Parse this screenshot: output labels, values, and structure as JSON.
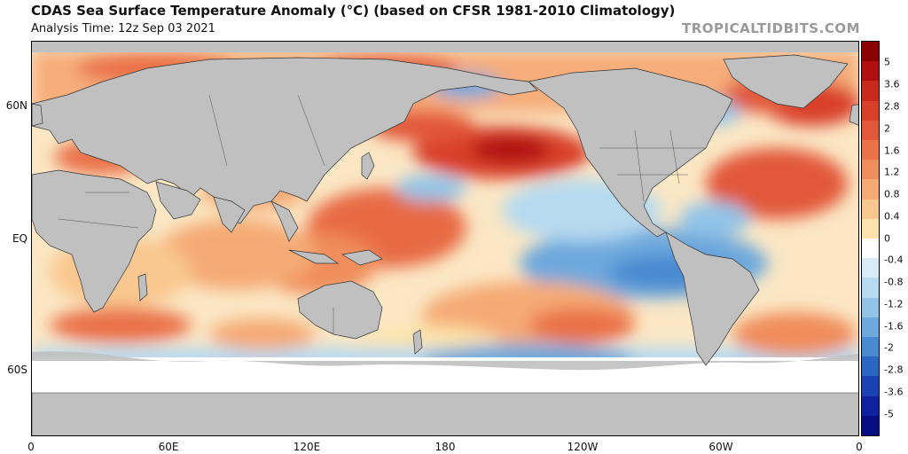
{
  "header": {
    "title": "CDAS Sea Surface Temperature Anomaly (°C) (based on CFSR 1981-2010 Climatology)",
    "analysis_time": "Analysis Time: 12z Sep 03 2021",
    "brand": "TROPICALTIDBITS.COM"
  },
  "map": {
    "lat_labels": [
      "60N",
      "EQ",
      "60S"
    ],
    "lon_labels": [
      "0",
      "60E",
      "120E",
      "180",
      "120W",
      "60W",
      "0"
    ],
    "land_color": "#c0c0c0",
    "ice_color": "#ffffff",
    "anomaly_features": [
      {
        "name": "northeast-pacific-warm-blob",
        "anomaly": 3
      },
      {
        "name": "western-pacific-warm-pool",
        "anomaly": 1.6
      },
      {
        "name": "north-atlantic-warm",
        "anomaly": 2
      },
      {
        "name": "equatorial-pacific-cool-tongue",
        "anomaly": -1.2
      },
      {
        "name": "southern-ocean-cool",
        "anomaly": -1
      }
    ]
  },
  "colorbar": {
    "labels": [
      "5",
      "3.6",
      "2.8",
      "2",
      "1.6",
      "1.2",
      "0.8",
      "0.4",
      "0",
      "-0.4",
      "-0.8",
      "-1.2",
      "-1.6",
      "-2",
      "-2.8",
      "-3.6",
      "-5"
    ],
    "colors": [
      "#8b0000",
      "#b01010",
      "#c82a1c",
      "#d9402a",
      "#e2583a",
      "#ea7148",
      "#f08d5c",
      "#f5aa74",
      "#f9c78f",
      "#fde3ab",
      "#ffffff",
      "#d8ecf7",
      "#b6daf0",
      "#92c4e8",
      "#6ea9dd",
      "#4a8ad0",
      "#2c66c4",
      "#1a42b3",
      "#0e22a0",
      "#060d80"
    ]
  }
}
